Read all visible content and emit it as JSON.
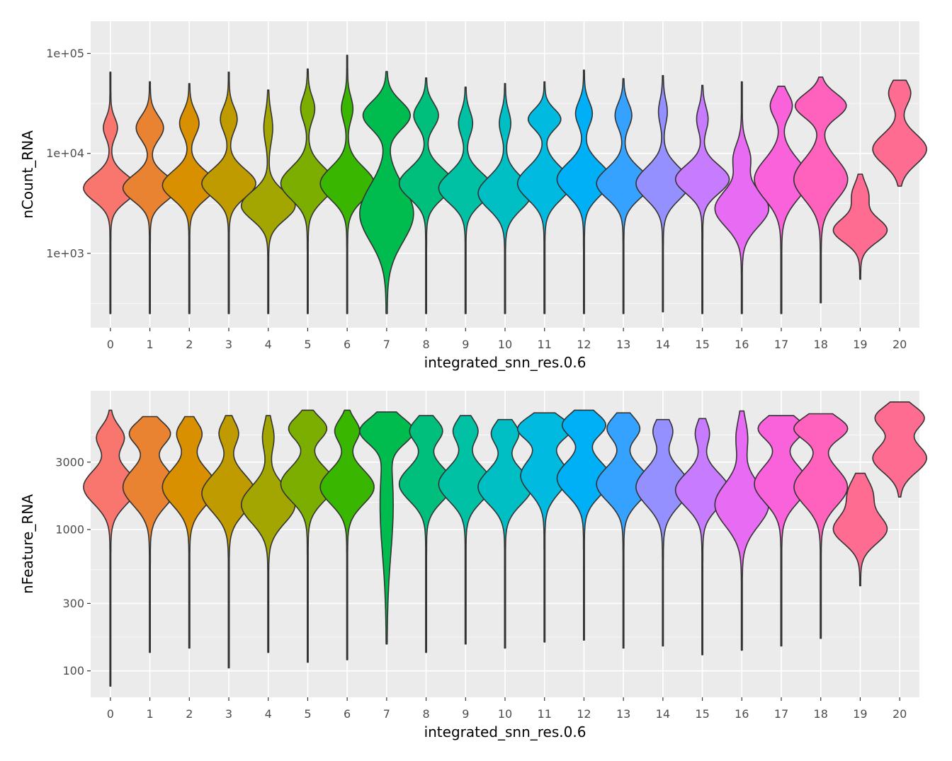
{
  "chart_data": [
    {
      "type": "violin",
      "xlabel": "integrated_snn_res.0.6",
      "ylabel": "nCount_RNA",
      "scale": "log10",
      "ylim": [
        180,
        210000
      ],
      "yticks": [
        1000,
        10000,
        100000
      ],
      "ytick_labels": [
        "1e+03",
        "1e+04",
        "1e+05"
      ],
      "grid": true,
      "legend": "none",
      "categories": [
        "0",
        "1",
        "2",
        "3",
        "4",
        "5",
        "6",
        "7",
        "8",
        "9",
        "10",
        "11",
        "12",
        "13",
        "14",
        "15",
        "16",
        "17",
        "18",
        "19",
        "20"
      ],
      "colors": [
        "#F8766D",
        "#EA8331",
        "#D89000",
        "#C09B00",
        "#A3A500",
        "#7CAE00",
        "#39B600",
        "#00BB4E",
        "#00BF7D",
        "#00C1A3",
        "#00BFC4",
        "#00BAE0",
        "#00B0F6",
        "#35A2FF",
        "#9590FF",
        "#C77CFF",
        "#E76BF3",
        "#FA62DB",
        "#FF62BC",
        "#FF6C91",
        "#FF6C91"
      ],
      "series": [
        {
          "category": "0",
          "min": 250,
          "max": 65000,
          "modes": [
            [
              4500,
              1.0,
              0.13
            ],
            [
              18000,
              0.25,
              0.1
            ]
          ]
        },
        {
          "category": "1",
          "min": 250,
          "max": 52000,
          "modes": [
            [
              4500,
              1.0,
              0.13
            ],
            [
              18000,
              0.5,
              0.12
            ]
          ]
        },
        {
          "category": "2",
          "min": 250,
          "max": 50000,
          "modes": [
            [
              4800,
              1.0,
              0.14
            ],
            [
              20000,
              0.35,
              0.12
            ]
          ]
        },
        {
          "category": "3",
          "min": 250,
          "max": 65000,
          "modes": [
            [
              5000,
              1.0,
              0.14
            ],
            [
              22000,
              0.3,
              0.12
            ]
          ]
        },
        {
          "category": "4",
          "min": 250,
          "max": 43000,
          "modes": [
            [
              3000,
              1.0,
              0.14
            ],
            [
              18000,
              0.15,
              0.15
            ]
          ]
        },
        {
          "category": "5",
          "min": 250,
          "max": 70000,
          "modes": [
            [
              5000,
              1.0,
              0.16
            ],
            [
              28000,
              0.25,
              0.12
            ]
          ]
        },
        {
          "category": "6",
          "min": 250,
          "max": 96000,
          "modes": [
            [
              5000,
              1.0,
              0.16
            ],
            [
              28000,
              0.2,
              0.12
            ]
          ]
        },
        {
          "category": "7",
          "min": 250,
          "max": 66000,
          "modes": [
            [
              2500,
              0.8,
              0.28
            ],
            [
              24000,
              0.7,
              0.14
            ]
          ]
        },
        {
          "category": "8",
          "min": 250,
          "max": 57000,
          "modes": [
            [
              5000,
              1.0,
              0.15
            ],
            [
              24000,
              0.45,
              0.12
            ]
          ]
        },
        {
          "category": "9",
          "min": 250,
          "max": 46000,
          "modes": [
            [
              4500,
              1.0,
              0.15
            ],
            [
              20000,
              0.25,
              0.12
            ]
          ]
        },
        {
          "category": "10",
          "min": 250,
          "max": 50000,
          "modes": [
            [
              4000,
              1.0,
              0.16
            ],
            [
              20000,
              0.2,
              0.12
            ]
          ]
        },
        {
          "category": "11",
          "min": 250,
          "max": 52000,
          "modes": [
            [
              5000,
              1.0,
              0.16
            ],
            [
              22000,
              0.6,
              0.1
            ]
          ]
        },
        {
          "category": "12",
          "min": 250,
          "max": 68000,
          "modes": [
            [
              5500,
              1.0,
              0.16
            ],
            [
              25000,
              0.3,
              0.12
            ]
          ]
        },
        {
          "category": "13",
          "min": 250,
          "max": 56000,
          "modes": [
            [
              5000,
              1.0,
              0.15
            ],
            [
              24000,
              0.3,
              0.12
            ]
          ]
        },
        {
          "category": "14",
          "min": 260,
          "max": 60000,
          "modes": [
            [
              5000,
              1.0,
              0.16
            ],
            [
              26000,
              0.15,
              0.12
            ]
          ]
        },
        {
          "category": "15",
          "min": 250,
          "max": 48000,
          "modes": [
            [
              5500,
              1.0,
              0.14
            ],
            [
              22000,
              0.2,
              0.12
            ]
          ]
        },
        {
          "category": "16",
          "min": 250,
          "max": 52000,
          "modes": [
            [
              2800,
              1.0,
              0.18
            ],
            [
              9000,
              0.3,
              0.14
            ]
          ]
        },
        {
          "category": "17",
          "min": 250,
          "max": 47000,
          "modes": [
            [
              5500,
              1.0,
              0.2
            ],
            [
              30000,
              0.4,
              0.12
            ]
          ]
        },
        {
          "category": "18",
          "min": 320,
          "max": 58000,
          "modes": [
            [
              5500,
              1.0,
              0.2
            ],
            [
              30000,
              0.95,
              0.12
            ]
          ]
        },
        {
          "category": "19",
          "min": 550,
          "max": 6200,
          "modes": [
            [
              1700,
              1.0,
              0.12
            ],
            [
              3800,
              0.3,
              0.12
            ]
          ]
        },
        {
          "category": "20",
          "min": 4700,
          "max": 54000,
          "modes": [
            [
              11000,
              1.0,
              0.15
            ],
            [
              40000,
              0.4,
              0.12
            ]
          ]
        }
      ]
    },
    {
      "type": "violin",
      "xlabel": "integrated_snn_res.0.6",
      "ylabel": "nFeature_RNA",
      "scale": "log10",
      "ylim": [
        65,
        9600
      ],
      "yticks": [
        100,
        300,
        1000,
        3000
      ],
      "ytick_labels": [
        "100",
        "300",
        "1000",
        "3000"
      ],
      "grid": true,
      "legend": "none",
      "categories": [
        "0",
        "1",
        "2",
        "3",
        "4",
        "5",
        "6",
        "7",
        "8",
        "9",
        "10",
        "11",
        "12",
        "13",
        "14",
        "15",
        "16",
        "17",
        "18",
        "19",
        "20"
      ],
      "colors": [
        "#F8766D",
        "#EA8331",
        "#D89000",
        "#C09B00",
        "#A3A500",
        "#7CAE00",
        "#39B600",
        "#00BB4E",
        "#00BF7D",
        "#00C1A3",
        "#00BFC4",
        "#00BAE0",
        "#00B0F6",
        "#35A2FF",
        "#9590FF",
        "#C77CFF",
        "#E76BF3",
        "#FA62DB",
        "#FF62BC",
        "#FF6C91",
        "#FF6C91"
      ],
      "series": [
        {
          "category": "0",
          "min": 78,
          "max": 7000,
          "modes": [
            [
              2000,
              1.0,
              0.12
            ],
            [
              4500,
              0.5,
              0.08
            ]
          ]
        },
        {
          "category": "1",
          "min": 135,
          "max": 6300,
          "modes": [
            [
              2000,
              1.0,
              0.13
            ],
            [
              4800,
              0.75,
              0.08
            ]
          ]
        },
        {
          "category": "2",
          "min": 145,
          "max": 6300,
          "modes": [
            [
              2000,
              1.0,
              0.13
            ],
            [
              4800,
              0.45,
              0.08
            ]
          ]
        },
        {
          "category": "3",
          "min": 105,
          "max": 6400,
          "modes": [
            [
              1800,
              1.0,
              0.13
            ],
            [
              4800,
              0.35,
              0.08
            ]
          ]
        },
        {
          "category": "4",
          "min": 135,
          "max": 6400,
          "modes": [
            [
              1500,
              1.0,
              0.13
            ],
            [
              4500,
              0.2,
              0.1
            ]
          ]
        },
        {
          "category": "5",
          "min": 115,
          "max": 7000,
          "modes": [
            [
              2100,
              1.0,
              0.12
            ],
            [
              5200,
              0.7,
              0.08
            ]
          ]
        },
        {
          "category": "6",
          "min": 120,
          "max": 7000,
          "modes": [
            [
              2000,
              1.0,
              0.12
            ],
            [
              5000,
              0.45,
              0.08
            ]
          ]
        },
        {
          "category": "7",
          "min": 155,
          "max": 6800,
          "modes": [
            [
              1500,
              0.25,
              0.35
            ],
            [
              5000,
              1.0,
              0.09
            ]
          ]
        },
        {
          "category": "8",
          "min": 135,
          "max": 6400,
          "modes": [
            [
              2100,
              1.0,
              0.12
            ],
            [
              5000,
              0.6,
              0.08
            ]
          ]
        },
        {
          "category": "9",
          "min": 155,
          "max": 6400,
          "modes": [
            [
              2100,
              1.0,
              0.12
            ],
            [
              5000,
              0.45,
              0.08
            ]
          ]
        },
        {
          "category": "10",
          "min": 145,
          "max": 6000,
          "modes": [
            [
              2000,
              1.0,
              0.12
            ],
            [
              4800,
              0.5,
              0.08
            ]
          ]
        },
        {
          "category": "11",
          "min": 160,
          "max": 6700,
          "modes": [
            [
              2400,
              0.9,
              0.12
            ],
            [
              5200,
              1.0,
              0.08
            ]
          ]
        },
        {
          "category": "12",
          "min": 165,
          "max": 7000,
          "modes": [
            [
              2300,
              1.0,
              0.12
            ],
            [
              5500,
              0.8,
              0.08
            ]
          ]
        },
        {
          "category": "13",
          "min": 145,
          "max": 6700,
          "modes": [
            [
              2100,
              1.0,
              0.12
            ],
            [
              5200,
              0.6,
              0.08
            ]
          ]
        },
        {
          "category": "14",
          "min": 150,
          "max": 6000,
          "modes": [
            [
              2000,
              1.0,
              0.13
            ],
            [
              5000,
              0.35,
              0.08
            ]
          ]
        },
        {
          "category": "15",
          "min": 130,
          "max": 6100,
          "modes": [
            [
              1900,
              1.0,
              0.12
            ],
            [
              4800,
              0.25,
              0.08
            ]
          ]
        },
        {
          "category": "16",
          "min": 140,
          "max": 6900,
          "modes": [
            [
              1500,
              1.0,
              0.15
            ],
            [
              4500,
              0.2,
              0.12
            ]
          ]
        },
        {
          "category": "17",
          "min": 150,
          "max": 6400,
          "modes": [
            [
              2100,
              1.0,
              0.13
            ],
            [
              5200,
              0.85,
              0.08
            ]
          ]
        },
        {
          "category": "18",
          "min": 170,
          "max": 6600,
          "modes": [
            [
              2000,
              1.0,
              0.13
            ],
            [
              5200,
              1.0,
              0.08
            ]
          ]
        },
        {
          "category": "19",
          "min": 400,
          "max": 2500,
          "modes": [
            [
              1000,
              1.0,
              0.1
            ],
            [
              1800,
              0.45,
              0.1
            ]
          ]
        },
        {
          "category": "20",
          "min": 1700,
          "max": 8000,
          "modes": [
            [
              3200,
              1.0,
              0.1
            ],
            [
              6200,
              0.9,
              0.08
            ]
          ]
        }
      ]
    }
  ]
}
